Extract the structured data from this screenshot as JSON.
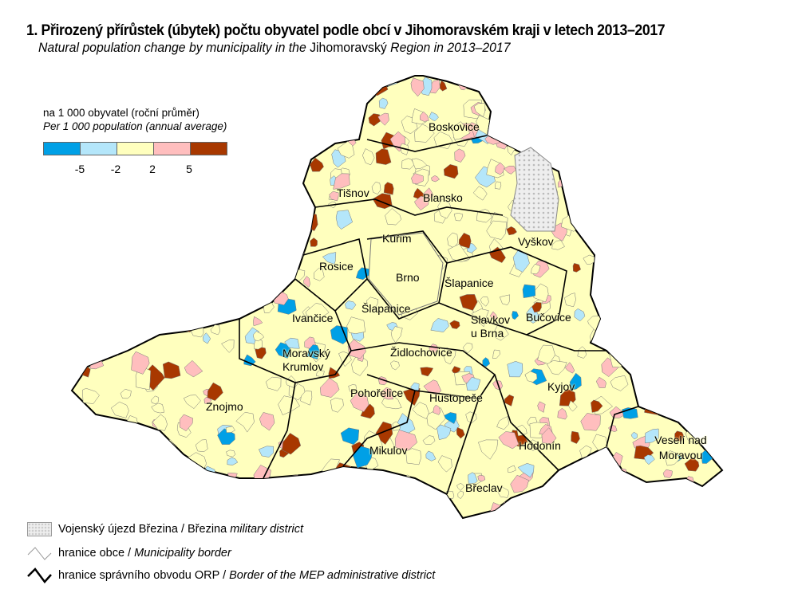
{
  "title": "1. Přirozený přírůstek (úbytek) počtu obyvatel podle obcí v Jihomoravském kraji v letech 2013–2017",
  "subtitle": {
    "part1": "Natural population change by municipality in the ",
    "region": "Jihomoravský",
    "part2": " Region in 2013–2017"
  },
  "legend": {
    "unit_cz": "na 1 000 obyvatel (roční průměr)",
    "unit_en": "Per 1 000 population (annual average)",
    "classes": [
      "#00a0e6",
      "#b4e6fa",
      "#ffffbe",
      "#ffbebe",
      "#a83800"
    ],
    "breaks": [
      "-5",
      "-2",
      "2",
      "5"
    ]
  },
  "districts": [
    "Boskovice",
    "Tišnov",
    "Blansko",
    "Kuřim",
    "Vyškov",
    "Rosice",
    "Brno",
    "Šlapanice",
    "Šlapanice",
    "Ivančice",
    "Slavkov u Brna",
    "Bučovice",
    "Moravský Krumlov",
    "Židlochovice",
    "Kyjov",
    "Pohořelice",
    "Hustopeče",
    "Znojmo",
    "Hodonín",
    "Veselí nad Moravou",
    "Mikulov",
    "Břeclav"
  ],
  "bottom_legend": [
    {
      "cz": "Vojenský újezd Březina / Březina ",
      "en": "military district"
    },
    {
      "cz": "hranice obce / ",
      "en": "Municipality border"
    },
    {
      "cz": "hranice správního obvodu ORP / ",
      "en": "Border of the MEP administrative district"
    }
  ]
}
